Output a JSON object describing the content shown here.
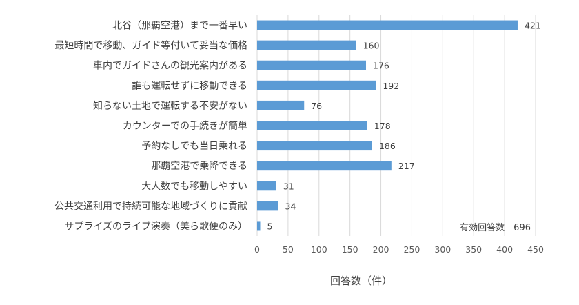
{
  "chart_data": {
    "type": "bar",
    "orientation": "horizontal",
    "categories": [
      "北谷（那覇空港）まで一番早い",
      "最短時間で移動、ガイド等付いて妥当な価格",
      "車内でガイドさんの観光案内がある",
      "誰も運転せずに移動できる",
      "知らない土地で運転する不安がない",
      "カウンターでの手続きが簡単",
      "予約なしでも当日乗れる",
      "那覇空港で乗降できる",
      "大人数でも移動しやすい",
      "公共交通利用で持続可能な地域づくりに貢献",
      "サプライズのライブ演奏（美ら歌便のみ）"
    ],
    "values": [
      421,
      160,
      176,
      192,
      76,
      178,
      186,
      217,
      31,
      34,
      5
    ],
    "xlabel": "回答数（件）",
    "ylabel": "",
    "xlim": [
      0,
      450
    ],
    "xticks": [
      0,
      50,
      100,
      150,
      200,
      250,
      300,
      350,
      400,
      450
    ],
    "grid": "vertical",
    "bar_color": "#5b9bd5",
    "annotation": "有効回答数＝696"
  }
}
